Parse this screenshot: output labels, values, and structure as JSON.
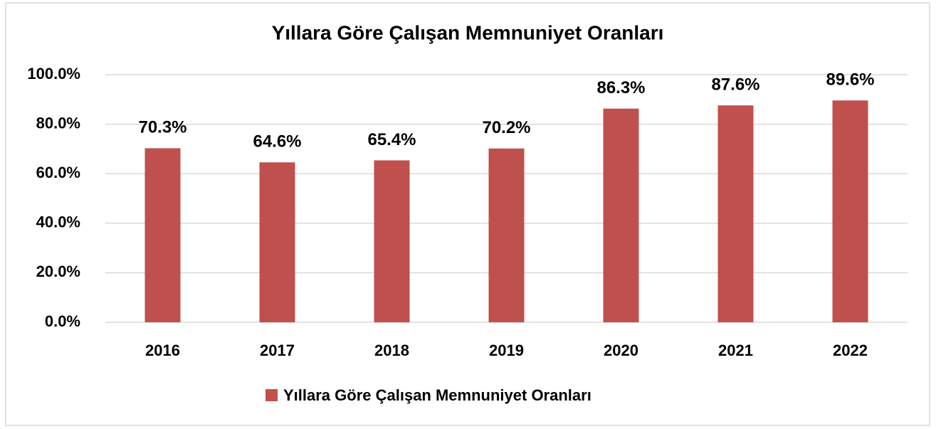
{
  "chart_data": {
    "type": "bar",
    "title": "Yıllara Göre Çalışan Memnuniyet Oranları",
    "categories": [
      "2016",
      "2017",
      "2018",
      "2019",
      "2020",
      "2021",
      "2022"
    ],
    "series": [
      {
        "name": "Yıllara Göre Çalışan Memnuniyet Oranları",
        "color": "#c0504d",
        "values": [
          70.3,
          64.6,
          65.4,
          70.2,
          86.3,
          87.6,
          89.6
        ],
        "value_labels": [
          "70.3%",
          "64.6%",
          "65.4%",
          "70.2%",
          "86.3%",
          "87.6%",
          "89.6%"
        ]
      }
    ],
    "ylim": [
      0,
      100
    ],
    "yticks": [
      {
        "value": 0,
        "label": "0.0%"
      },
      {
        "value": 20,
        "label": "20.0%"
      },
      {
        "value": 40,
        "label": "40.0%"
      },
      {
        "value": 60,
        "label": "60.0%"
      },
      {
        "value": 80,
        "label": "80.0%"
      },
      {
        "value": 100,
        "label": "100.0%"
      }
    ],
    "grid": true,
    "legend": "bottom"
  }
}
